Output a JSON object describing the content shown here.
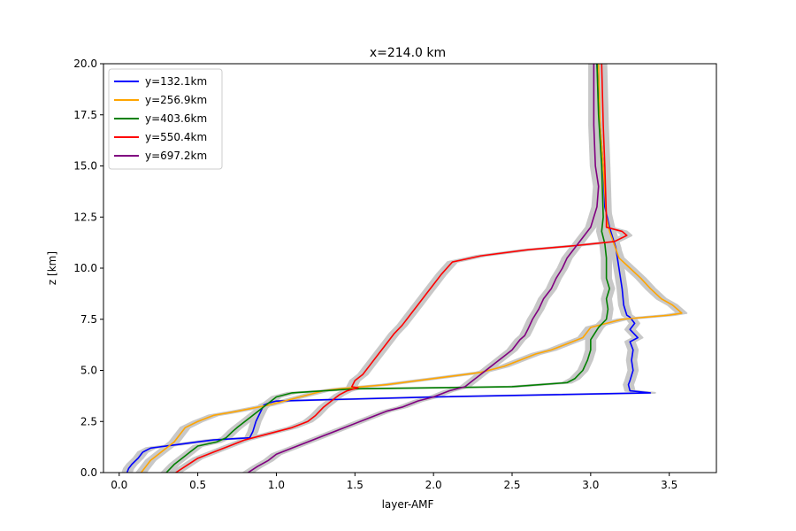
{
  "chart_data": {
    "type": "line",
    "title": "x=214.0 km",
    "xlabel": "layer-AMF",
    "ylabel": "z [km]",
    "xlim": [
      -0.1,
      3.8
    ],
    "ylim": [
      0,
      20
    ],
    "xticks": [
      "0.0",
      "0.5",
      "1.0",
      "1.5",
      "2.0",
      "2.5",
      "3.0",
      "3.5"
    ],
    "yticks": [
      "0.0",
      "2.5",
      "5.0",
      "7.5",
      "10.0",
      "12.5",
      "15.0",
      "17.5",
      "20.0"
    ],
    "legend_position": "top-left",
    "grid": false,
    "uncertainty_band": {
      "color": "#c8c8c8",
      "half_width": 0.03
    },
    "series": [
      {
        "name": "y=132.1km",
        "color": "#0000ff",
        "points": [
          [
            3.04,
            20
          ],
          [
            3.06,
            17
          ],
          [
            3.08,
            15
          ],
          [
            3.09,
            13
          ],
          [
            3.12,
            12
          ],
          [
            3.16,
            11
          ],
          [
            3.18,
            10
          ],
          [
            3.2,
            9
          ],
          [
            3.21,
            8.2
          ],
          [
            3.23,
            7.7
          ],
          [
            3.25,
            7.6
          ],
          [
            3.28,
            7.3
          ],
          [
            3.25,
            7
          ],
          [
            3.3,
            6.6
          ],
          [
            3.25,
            6.4
          ],
          [
            3.27,
            6
          ],
          [
            3.26,
            5.5
          ],
          [
            3.27,
            5
          ],
          [
            3.25,
            4.5
          ],
          [
            3.24,
            4.3
          ],
          [
            3.25,
            4
          ],
          [
            3.38,
            3.9
          ],
          [
            2.0,
            3.7
          ],
          [
            1.0,
            3.5
          ],
          [
            0.95,
            3.4
          ],
          [
            0.92,
            3.3
          ],
          [
            0.87,
            2.5
          ],
          [
            0.85,
            2
          ],
          [
            0.83,
            1.7
          ],
          [
            0.6,
            1.6
          ],
          [
            0.5,
            1.5
          ],
          [
            0.4,
            1.4
          ],
          [
            0.35,
            1.35
          ],
          [
            0.3,
            1.3
          ],
          [
            0.25,
            1.25
          ],
          [
            0.2,
            1.2
          ],
          [
            0.15,
            1.0
          ],
          [
            0.12,
            0.7
          ],
          [
            0.08,
            0.4
          ],
          [
            0.06,
            0.2
          ],
          [
            0.05,
            0
          ]
        ]
      },
      {
        "name": "y=256.9km",
        "color": "#ffa500",
        "points": [
          [
            3.05,
            20
          ],
          [
            3.06,
            17
          ],
          [
            3.08,
            15
          ],
          [
            3.1,
            12.5
          ],
          [
            3.12,
            11.8
          ],
          [
            3.18,
            10.5
          ],
          [
            3.25,
            10
          ],
          [
            3.32,
            9.5
          ],
          [
            3.38,
            9
          ],
          [
            3.45,
            8.5
          ],
          [
            3.52,
            8.2
          ],
          [
            3.58,
            7.8
          ],
          [
            3.5,
            7.7
          ],
          [
            3.2,
            7.5
          ],
          [
            3.0,
            7.1
          ],
          [
            2.95,
            6.6
          ],
          [
            2.85,
            6.3
          ],
          [
            2.75,
            6
          ],
          [
            2.65,
            5.8
          ],
          [
            2.55,
            5.5
          ],
          [
            2.45,
            5.2
          ],
          [
            2.3,
            4.9
          ],
          [
            2.1,
            4.7
          ],
          [
            1.9,
            4.5
          ],
          [
            1.7,
            4.3
          ],
          [
            1.55,
            4.2
          ],
          [
            1.4,
            4.1
          ],
          [
            1.3,
            4
          ],
          [
            1.2,
            3.8
          ],
          [
            1.1,
            3.6
          ],
          [
            0.95,
            3.3
          ],
          [
            0.75,
            3
          ],
          [
            0.6,
            2.8
          ],
          [
            0.5,
            2.5
          ],
          [
            0.42,
            2.2
          ],
          [
            0.38,
            1.8
          ],
          [
            0.35,
            1.5
          ],
          [
            0.3,
            1.2
          ],
          [
            0.25,
            0.9
          ],
          [
            0.2,
            0.6
          ],
          [
            0.17,
            0.3
          ],
          [
            0.14,
            0
          ]
        ]
      },
      {
        "name": "y=403.6km",
        "color": "#008000",
        "points": [
          [
            3.04,
            20
          ],
          [
            3.05,
            17.5
          ],
          [
            3.07,
            15
          ],
          [
            3.08,
            12.5
          ],
          [
            3.07,
            11.8
          ],
          [
            3.09,
            11.2
          ],
          [
            3.1,
            10.5
          ],
          [
            3.1,
            9.5
          ],
          [
            3.12,
            9
          ],
          [
            3.1,
            8.5
          ],
          [
            3.11,
            8
          ],
          [
            3.1,
            7.5
          ],
          [
            3.05,
            7.1
          ],
          [
            3.0,
            6.5
          ],
          [
            3.0,
            6
          ],
          [
            2.98,
            5.5
          ],
          [
            2.95,
            5
          ],
          [
            2.9,
            4.6
          ],
          [
            2.85,
            4.4
          ],
          [
            2.5,
            4.2
          ],
          [
            1.5,
            4.1
          ],
          [
            1.1,
            3.9
          ],
          [
            1.0,
            3.7
          ],
          [
            0.95,
            3.4
          ],
          [
            0.85,
            2.8
          ],
          [
            0.8,
            2.5
          ],
          [
            0.75,
            2.2
          ],
          [
            0.72,
            2
          ],
          [
            0.68,
            1.7
          ],
          [
            0.62,
            1.5
          ],
          [
            0.5,
            1.3
          ],
          [
            0.45,
            1
          ],
          [
            0.4,
            0.7
          ],
          [
            0.35,
            0.4
          ],
          [
            0.3,
            0
          ]
        ]
      },
      {
        "name": "y=550.4km",
        "color": "#ff0000",
        "points": [
          [
            3.07,
            20
          ],
          [
            3.08,
            17
          ],
          [
            3.09,
            15
          ],
          [
            3.1,
            12.5
          ],
          [
            3.1,
            12
          ],
          [
            3.2,
            11.8
          ],
          [
            3.23,
            11.6
          ],
          [
            3.15,
            11.3
          ],
          [
            2.9,
            11.1
          ],
          [
            2.6,
            10.9
          ],
          [
            2.3,
            10.6
          ],
          [
            2.12,
            10.3
          ],
          [
            2.05,
            9.7
          ],
          [
            2.0,
            9.2
          ],
          [
            1.95,
            8.7
          ],
          [
            1.9,
            8.2
          ],
          [
            1.85,
            7.7
          ],
          [
            1.8,
            7.2
          ],
          [
            1.75,
            6.8
          ],
          [
            1.7,
            6.3
          ],
          [
            1.65,
            5.8
          ],
          [
            1.6,
            5.3
          ],
          [
            1.55,
            4.8
          ],
          [
            1.5,
            4.5
          ],
          [
            1.48,
            4.2
          ],
          [
            1.52,
            4.15
          ],
          [
            1.45,
            4
          ],
          [
            1.4,
            3.8
          ],
          [
            1.35,
            3.5
          ],
          [
            1.3,
            3.2
          ],
          [
            1.25,
            2.8
          ],
          [
            1.2,
            2.5
          ],
          [
            1.1,
            2.2
          ],
          [
            1.0,
            2
          ],
          [
            0.9,
            1.8
          ],
          [
            0.8,
            1.6
          ],
          [
            0.7,
            1.3
          ],
          [
            0.6,
            1
          ],
          [
            0.5,
            0.7
          ],
          [
            0.42,
            0.3
          ],
          [
            0.36,
            0
          ]
        ]
      },
      {
        "name": "y=697.2km",
        "color": "#800080",
        "points": [
          [
            3.02,
            20
          ],
          [
            3.02,
            17
          ],
          [
            3.03,
            15
          ],
          [
            3.05,
            14
          ],
          [
            3.04,
            13
          ],
          [
            3.02,
            12.5
          ],
          [
            3.0,
            12
          ],
          [
            2.95,
            11.5
          ],
          [
            2.9,
            11
          ],
          [
            2.85,
            10.5
          ],
          [
            2.82,
            10
          ],
          [
            2.78,
            9.5
          ],
          [
            2.75,
            9
          ],
          [
            2.7,
            8.5
          ],
          [
            2.67,
            8
          ],
          [
            2.63,
            7.5
          ],
          [
            2.6,
            7
          ],
          [
            2.58,
            6.7
          ],
          [
            2.55,
            6.5
          ],
          [
            2.5,
            6
          ],
          [
            2.45,
            5.7
          ],
          [
            2.4,
            5.4
          ],
          [
            2.35,
            5.1
          ],
          [
            2.3,
            4.8
          ],
          [
            2.25,
            4.5
          ],
          [
            2.2,
            4.2
          ],
          [
            2.1,
            4
          ],
          [
            2.0,
            3.7
          ],
          [
            1.9,
            3.5
          ],
          [
            1.8,
            3.2
          ],
          [
            1.7,
            3
          ],
          [
            1.6,
            2.7
          ],
          [
            1.5,
            2.4
          ],
          [
            1.4,
            2.1
          ],
          [
            1.3,
            1.8
          ],
          [
            1.2,
            1.5
          ],
          [
            1.1,
            1.2
          ],
          [
            1.0,
            0.9
          ],
          [
            0.95,
            0.6
          ],
          [
            0.88,
            0.3
          ],
          [
            0.82,
            0
          ]
        ]
      }
    ]
  }
}
